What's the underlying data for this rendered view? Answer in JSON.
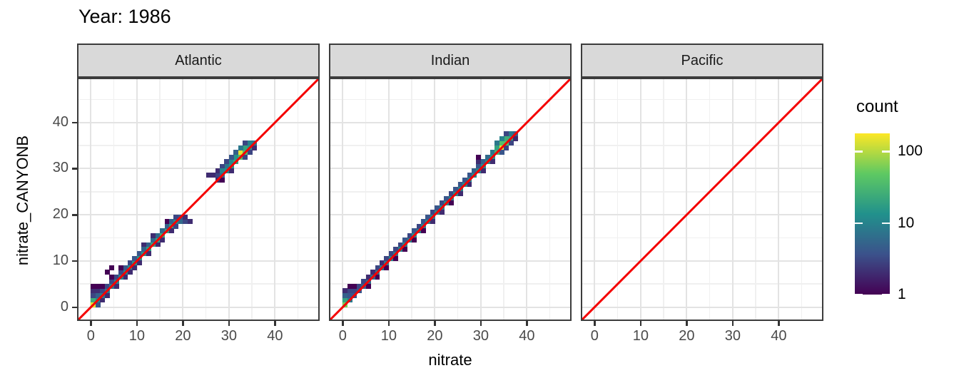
{
  "title": "Year: 1986",
  "colors": {
    "reference_line": "#F40000",
    "strip_bg": "#D9D9D9",
    "strip_border": "#3C3C3C",
    "panel_border": "#3C3C3C",
    "grid_major": "#E3E3E3",
    "grid_minor": "#F0F0F0",
    "tick_color": "#333333",
    "tick_label_color": "#4A4A4A",
    "text_color": "#000000"
  },
  "viridis_stops": [
    "#440154",
    "#3b528b",
    "#21918c",
    "#5ec962",
    "#fde725"
  ],
  "chart_data": {
    "type": "heatmap",
    "subtype": "bin2d-faceted",
    "title": "Year: 1986",
    "xlabel": "nitrate",
    "ylabel": "nitrate_CANYONB",
    "x_ticks": [
      0,
      10,
      20,
      30,
      40
    ],
    "y_ticks": [
      0,
      10,
      20,
      30,
      40
    ],
    "minor_ticks": [
      5,
      15,
      25,
      35,
      45
    ],
    "xlim": [
      -3,
      49.7
    ],
    "ylim": [
      -3,
      49.7
    ],
    "grid": "major-and-minor",
    "reference_line": "y = x",
    "legend": {
      "title": "count",
      "scale": "log10",
      "ticks": [
        100,
        10,
        1
      ],
      "max_count": 178,
      "position": "right"
    },
    "facets": [
      {
        "label": "Atlantic",
        "bins": [
          [
            0,
            0,
            150
          ],
          [
            0,
            1,
            25
          ],
          [
            1,
            1,
            12
          ],
          [
            1,
            2,
            5
          ],
          [
            0,
            2,
            3
          ],
          [
            2,
            1,
            2
          ],
          [
            1,
            0,
            4
          ],
          [
            0,
            3,
            2
          ],
          [
            1,
            3,
            2
          ],
          [
            0,
            4,
            1
          ],
          [
            1,
            4,
            1
          ],
          [
            2,
            2,
            8
          ],
          [
            2,
            3,
            3
          ],
          [
            3,
            3,
            8
          ],
          [
            3,
            4,
            3
          ],
          [
            2,
            4,
            1
          ],
          [
            3,
            2,
            2
          ],
          [
            3,
            7,
            1
          ],
          [
            4,
            8,
            1
          ],
          [
            4,
            4,
            8
          ],
          [
            4,
            5,
            3
          ],
          [
            4,
            6,
            1
          ],
          [
            5,
            4,
            2
          ],
          [
            5,
            5,
            10
          ],
          [
            5,
            6,
            3
          ],
          [
            6,
            6,
            10
          ],
          [
            6,
            7,
            3
          ],
          [
            6,
            8,
            1
          ],
          [
            7,
            7,
            12
          ],
          [
            7,
            8,
            4
          ],
          [
            7,
            6,
            2
          ],
          [
            8,
            8,
            12
          ],
          [
            8,
            9,
            3
          ],
          [
            8,
            7,
            2
          ],
          [
            9,
            9,
            15
          ],
          [
            9,
            10,
            4
          ],
          [
            9,
            8,
            2
          ],
          [
            10,
            10,
            15
          ],
          [
            10,
            11,
            4
          ],
          [
            10,
            9,
            2
          ],
          [
            11,
            11,
            15
          ],
          [
            11,
            12,
            5
          ],
          [
            11,
            13,
            2
          ],
          [
            12,
            12,
            18
          ],
          [
            12,
            13,
            5
          ],
          [
            12,
            11,
            2
          ],
          [
            13,
            13,
            20
          ],
          [
            13,
            14,
            6
          ],
          [
            13,
            15,
            2
          ],
          [
            14,
            14,
            20
          ],
          [
            14,
            15,
            6
          ],
          [
            14,
            13,
            2
          ],
          [
            15,
            15,
            25
          ],
          [
            15,
            16,
            6
          ],
          [
            15,
            14,
            2
          ],
          [
            16,
            16,
            20
          ],
          [
            16,
            17,
            5
          ],
          [
            16,
            18,
            1
          ],
          [
            17,
            17,
            18
          ],
          [
            17,
            18,
            5
          ],
          [
            17,
            16,
            2
          ],
          [
            18,
            18,
            12
          ],
          [
            18,
            19,
            3
          ],
          [
            18,
            17,
            3
          ],
          [
            19,
            18,
            6
          ],
          [
            19,
            19,
            4
          ],
          [
            20,
            18,
            3
          ],
          [
            20,
            19,
            2
          ],
          [
            21,
            18,
            2
          ],
          [
            25,
            28,
            2
          ],
          [
            26,
            28,
            2
          ],
          [
            27,
            27,
            2
          ],
          [
            27,
            28,
            3
          ],
          [
            28,
            28,
            6
          ],
          [
            28,
            29,
            10
          ],
          [
            27,
            29,
            2
          ],
          [
            29,
            29,
            12
          ],
          [
            29,
            30,
            8
          ],
          [
            28,
            30,
            3
          ],
          [
            30,
            30,
            15
          ],
          [
            30,
            31,
            12
          ],
          [
            29,
            31,
            3
          ],
          [
            31,
            31,
            20
          ],
          [
            31,
            32,
            15
          ],
          [
            30,
            32,
            4
          ],
          [
            32,
            32,
            40
          ],
          [
            32,
            33,
            150
          ],
          [
            31,
            33,
            5
          ],
          [
            33,
            33,
            40
          ],
          [
            33,
            34,
            20
          ],
          [
            32,
            34,
            8
          ],
          [
            34,
            34,
            15
          ],
          [
            34,
            35,
            10
          ],
          [
            33,
            35,
            3
          ],
          [
            35,
            35,
            8
          ],
          [
            34,
            33,
            3
          ],
          [
            33,
            32,
            3
          ],
          [
            35,
            34,
            2
          ],
          [
            28,
            27,
            1
          ],
          [
            30,
            29,
            2
          ]
        ]
      },
      {
        "label": "Indian",
        "bins": [
          [
            0,
            0,
            60
          ],
          [
            0,
            1,
            20
          ],
          [
            1,
            1,
            8
          ],
          [
            0,
            2,
            5
          ],
          [
            1,
            2,
            4
          ],
          [
            1,
            3,
            3
          ],
          [
            0,
            3,
            2
          ],
          [
            2,
            3,
            3
          ],
          [
            2,
            2,
            4
          ],
          [
            1,
            4,
            1
          ],
          [
            2,
            4,
            1
          ],
          [
            3,
            3,
            4
          ],
          [
            3,
            4,
            3
          ],
          [
            4,
            4,
            5
          ],
          [
            4,
            5,
            3
          ],
          [
            5,
            5,
            6
          ],
          [
            5,
            6,
            2
          ],
          [
            5,
            4,
            1
          ],
          [
            6,
            6,
            6
          ],
          [
            6,
            7,
            2
          ],
          [
            7,
            7,
            8
          ],
          [
            7,
            8,
            3
          ],
          [
            7,
            6,
            1
          ],
          [
            8,
            8,
            8
          ],
          [
            8,
            9,
            2
          ],
          [
            9,
            9,
            8
          ],
          [
            9,
            10,
            3
          ],
          [
            9,
            8,
            1
          ],
          [
            10,
            10,
            10
          ],
          [
            10,
            11,
            3
          ],
          [
            11,
            11,
            8
          ],
          [
            11,
            12,
            3
          ],
          [
            11,
            10,
            1
          ],
          [
            12,
            12,
            10
          ],
          [
            12,
            13,
            3
          ],
          [
            13,
            13,
            10
          ],
          [
            13,
            14,
            4
          ],
          [
            13,
            12,
            1
          ],
          [
            14,
            14,
            10
          ],
          [
            14,
            15,
            3
          ],
          [
            15,
            15,
            12
          ],
          [
            15,
            16,
            4
          ],
          [
            15,
            14,
            1
          ],
          [
            16,
            16,
            10
          ],
          [
            16,
            17,
            3
          ],
          [
            17,
            17,
            10
          ],
          [
            17,
            18,
            4
          ],
          [
            17,
            16,
            1
          ],
          [
            18,
            18,
            12
          ],
          [
            18,
            19,
            4
          ],
          [
            19,
            19,
            10
          ],
          [
            19,
            20,
            3
          ],
          [
            19,
            18,
            2
          ],
          [
            20,
            20,
            12
          ],
          [
            20,
            21,
            4
          ],
          [
            21,
            21,
            10
          ],
          [
            21,
            22,
            3
          ],
          [
            21,
            20,
            2
          ],
          [
            22,
            22,
            12
          ],
          [
            22,
            23,
            4
          ],
          [
            23,
            23,
            10
          ],
          [
            23,
            24,
            3
          ],
          [
            23,
            22,
            1
          ],
          [
            24,
            24,
            12
          ],
          [
            24,
            25,
            4
          ],
          [
            25,
            25,
            10
          ],
          [
            25,
            26,
            4
          ],
          [
            25,
            24,
            2
          ],
          [
            26,
            26,
            12
          ],
          [
            26,
            27,
            4
          ],
          [
            27,
            27,
            10
          ],
          [
            27,
            28,
            4
          ],
          [
            27,
            26,
            2
          ],
          [
            28,
            28,
            12
          ],
          [
            28,
            29,
            5
          ],
          [
            29,
            29,
            10
          ],
          [
            29,
            30,
            4
          ],
          [
            29,
            31,
            2
          ],
          [
            29,
            32,
            1
          ],
          [
            30,
            30,
            12
          ],
          [
            30,
            31,
            5
          ],
          [
            30,
            29,
            2
          ],
          [
            31,
            31,
            12
          ],
          [
            31,
            32,
            6
          ],
          [
            32,
            32,
            15
          ],
          [
            32,
            33,
            8
          ],
          [
            32,
            31,
            2
          ],
          [
            33,
            33,
            30
          ],
          [
            33,
            34,
            20
          ],
          [
            34,
            34,
            150
          ],
          [
            34,
            35,
            40
          ],
          [
            33,
            35,
            8
          ],
          [
            35,
            35,
            40
          ],
          [
            35,
            36,
            25
          ],
          [
            34,
            36,
            10
          ],
          [
            36,
            36,
            20
          ],
          [
            36,
            37,
            8
          ],
          [
            35,
            34,
            3
          ],
          [
            36,
            35,
            3
          ],
          [
            37,
            36,
            2
          ],
          [
            35,
            37,
            3
          ],
          [
            34,
            33,
            4
          ],
          [
            37,
            37,
            5
          ]
        ]
      },
      {
        "label": "Pacific",
        "bins": []
      }
    ]
  }
}
